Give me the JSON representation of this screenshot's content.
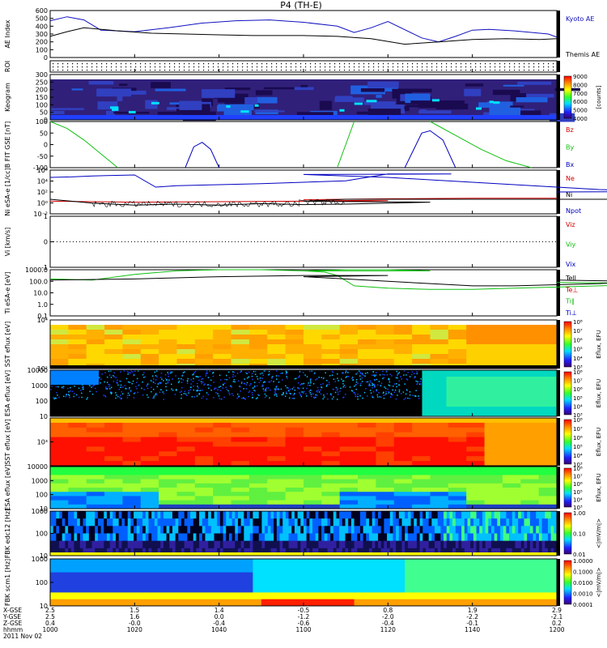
{
  "title": "P4 (TH-E)",
  "colors": {
    "kyoto": "#1010c0",
    "themis": "#000000",
    "red": "#d00000",
    "green": "#10c010",
    "blue": "#0000c0",
    "black": "#000000"
  },
  "time_axis": {
    "range": [
      1000,
      1200
    ],
    "ticks": [
      1000,
      1020,
      1040,
      1100,
      1120,
      1140,
      1200
    ]
  },
  "footer": {
    "rows": [
      {
        "label": "X-GSE",
        "values": [
          "2.5",
          "1.5",
          "1.4",
          "-0.5",
          "0.8",
          "1.9",
          "2.9"
        ]
      },
      {
        "label": "Y-GSE",
        "values": [
          "2.5",
          "1.6",
          "0.0",
          "-1.2",
          "-2.0",
          "-2.2",
          "-2.1"
        ]
      },
      {
        "label": "Z-GSE",
        "values": [
          "0.4",
          "-0.0",
          "-0.4",
          "-0.6",
          "-0.4",
          "-0.1",
          "0.2"
        ]
      },
      {
        "label": "hhmm",
        "values": [
          "1000",
          "1020",
          "1040",
          "1100",
          "1120",
          "1140",
          "1200"
        ]
      }
    ],
    "date": "2011 Nov 02"
  },
  "chart_data": [
    {
      "type": "line",
      "ylabel": "AE Index",
      "ylim": [
        0,
        600
      ],
      "yticks": [
        "0",
        "100",
        "200",
        "300",
        "400",
        "500",
        "600"
      ],
      "legend": [
        "Kyoto AE",
        "Themis AE"
      ],
      "series": [
        {
          "name": "Kyoto AE",
          "color": "#1010c0",
          "x": [
            1000,
            1004,
            1008,
            1012,
            1020,
            1028,
            1036,
            1044,
            1052,
            1100,
            1108,
            1112,
            1116,
            1120,
            1128,
            1132,
            1136,
            1140,
            1144,
            1150,
            1158,
            1200
          ],
          "y": [
            470,
            520,
            480,
            350,
            330,
            380,
            440,
            470,
            480,
            450,
            400,
            320,
            380,
            460,
            250,
            200,
            270,
            350,
            360,
            340,
            300,
            260
          ]
        },
        {
          "name": "Themis AE",
          "color": "#000000",
          "x": [
            1000,
            1004,
            1008,
            1016,
            1024,
            1032,
            1040,
            1048,
            1056,
            1100,
            1108,
            1116,
            1124,
            1132,
            1140,
            1148,
            1156,
            1200
          ],
          "y": [
            270,
            330,
            380,
            340,
            310,
            300,
            290,
            280,
            280,
            280,
            270,
            240,
            170,
            200,
            230,
            240,
            230,
            240
          ]
        }
      ]
    },
    {
      "type": "heatmap",
      "ylabel": "ROI",
      "note": "dotted flag rows"
    },
    {
      "type": "heatmap",
      "ylabel": "Keogram",
      "ylim": [
        0,
        300
      ],
      "yticks": [
        "0",
        "50",
        "100",
        "150",
        "200",
        "250",
        "300"
      ],
      "colorbar": {
        "min": 4000,
        "max": 9000,
        "ticks": [
          "4000",
          "5000",
          "6000",
          "7000",
          "8000",
          "9000"
        ],
        "label": "[counts]"
      }
    },
    {
      "type": "line",
      "ylabel": "B FIT GSE [nT]",
      "ylim": [
        -100,
        100
      ],
      "yticks": [
        "-100",
        "-50",
        "0",
        "50",
        "100"
      ],
      "legend": [
        "Bz",
        "By",
        "Bx"
      ],
      "series": [
        {
          "name": "By",
          "color": "#10c010",
          "x": [
            1000,
            1004,
            1008,
            1012,
            1016
          ],
          "y": [
            100,
            70,
            20,
            -40,
            -100
          ]
        },
        {
          "name": "By",
          "color": "#10c010",
          "x": [
            1108,
            1110,
            1112
          ],
          "y": [
            -100,
            0,
            100
          ]
        },
        {
          "name": "By",
          "color": "#10c010",
          "x": [
            1130,
            1136,
            1142,
            1148,
            1154
          ],
          "y": [
            100,
            40,
            -20,
            -70,
            -100
          ]
        },
        {
          "name": "Bx",
          "color": "#0000c0",
          "x": [
            1032,
            1034,
            1036,
            1038,
            1040
          ],
          "y": [
            -100,
            -10,
            10,
            -20,
            -100
          ]
        },
        {
          "name": "Bx",
          "color": "#0000c0",
          "x": [
            1084,
            1088,
            1090,
            1093,
            1096
          ],
          "y": [
            -100,
            50,
            60,
            20,
            -100
          ]
        }
      ]
    },
    {
      "type": "line",
      "ylabel": "Ni eSA-e [1/cc]",
      "ylim": [
        -3,
        6
      ],
      "yticks": [
        "10⁻²",
        "10⁰",
        "10²",
        "10⁴",
        "10⁶"
      ],
      "legend": [
        "Ne",
        "Ni",
        "Npot"
      ],
      "series": [
        {
          "name": "Ne",
          "color": "#d00000",
          "x": [
            1000,
            1010,
            1020,
            1040,
            1060,
            1080,
            1100,
            1120,
            1140,
            1160,
            1200
          ],
          "y": [
            -0.4,
            -0.5,
            -0.6,
            -0.5,
            -0.4,
            -0.3,
            -0.1,
            0.1,
            0.2,
            0.2,
            0.3
          ]
        },
        {
          "name": "Ni",
          "color": "#0000c0",
          "x": [
            1000,
            1005,
            1010,
            1020,
            1025,
            1030,
            1040,
            1050,
            1060,
            1070,
            1080,
            1090,
            1095,
            1100,
            1110,
            1120,
            1130,
            1140,
            1150,
            1160,
            1170,
            1180,
            1190,
            1200
          ],
          "y": [
            4.5,
            4.6,
            4.8,
            5.0,
            2.5,
            2.8,
            3.0,
            3.2,
            3.5,
            3.8,
            5.2,
            5.2,
            5.2,
            5.1,
            4.8,
            4.5,
            4.0,
            3.5,
            3.0,
            2.5,
            2.0,
            1.8,
            1.6,
            1.5
          ]
        },
        {
          "name": "Npot",
          "color": "#000000",
          "x": [
            1000,
            1010,
            1020,
            1030,
            1040,
            1050,
            1060,
            1070,
            1080,
            1090,
            1100,
            1105,
            1110,
            1120,
            1140,
            1160,
            1180,
            1200
          ],
          "y": [
            0.0,
            -0.8,
            -1.2,
            -1.0,
            -1.2,
            -0.9,
            -1.1,
            -1.0,
            -0.8,
            -0.6,
            -0.4,
            -0.2,
            0.0,
            0.0,
            0.0,
            0.0,
            0.0,
            0.0
          ]
        }
      ]
    },
    {
      "type": "line",
      "ylabel": "Vi [km/s]",
      "ylim": [
        -1,
        1
      ],
      "yticks": [
        "-1",
        "0",
        "1"
      ],
      "legend": [
        "Viz",
        "Viy",
        "Vix"
      ]
    },
    {
      "type": "line",
      "ylabel": "Ti eSA-e [eV]",
      "ylim": [
        -1,
        3
      ],
      "yticks": [
        "0.1",
        "1.0",
        "10.0",
        "100.0",
        "1000.0"
      ],
      "legend": [
        "Tell",
        "Te⊥",
        "Ti∥",
        "Ti⊥"
      ],
      "series": [
        {
          "name": "Ti∥",
          "color": "#10c010",
          "x": [
            1000,
            1010,
            1020,
            1030,
            1040,
            1050,
            1060,
            1070,
            1080,
            1090,
            1100,
            1105,
            1108,
            1112,
            1120,
            1130,
            1140,
            1150,
            1160,
            1170,
            1180,
            1190,
            1200
          ],
          "y": [
            2.2,
            2.1,
            2.6,
            2.9,
            3.0,
            3.0,
            2.9,
            3.0,
            3.0,
            2.9,
            2.9,
            2.8,
            2.5,
            1.6,
            1.4,
            1.3,
            1.3,
            1.4,
            1.5,
            1.6,
            1.7,
            1.8,
            1.9
          ]
        },
        {
          "name": "Tell",
          "color": "#000000",
          "x": [
            1000,
            1020,
            1040,
            1060,
            1080,
            1100,
            1110,
            1120,
            1130,
            1140,
            1150,
            1160,
            1170,
            1180,
            1200
          ],
          "y": [
            2.1,
            2.2,
            2.4,
            2.5,
            2.5,
            2.4,
            2.2,
            2.0,
            1.8,
            1.6,
            1.6,
            1.7,
            1.8,
            2.0,
            2.1
          ]
        }
      ]
    },
    {
      "type": "heatmap",
      "ylabel": "SST eflux [eV]",
      "ylim": [
        1,
        4.5
      ],
      "yticks": [
        "10²",
        "10⁴"
      ],
      "colorbar": {
        "min": 3,
        "max": 8,
        "ticks": [
          "10³",
          "10⁴",
          "10⁵",
          "10⁶",
          "10⁷",
          "10⁸"
        ],
        "label": "Eflux, EFU"
      }
    },
    {
      "type": "heatmap",
      "ylabel": "ESA eflux [eV]",
      "ylim": [
        1,
        4
      ],
      "yticks": [
        "10",
        "100",
        "1000",
        "10000"
      ],
      "colorbar": {
        "min": 3,
        "max": 8,
        "ticks": [
          "10³",
          "10⁴",
          "10⁵",
          "10⁶",
          "10⁷",
          "10⁸"
        ],
        "label": "Eflux, EFU"
      }
    },
    {
      "type": "heatmap",
      "ylabel": "SST eflux [eV]",
      "ylim": [
        1,
        4.5
      ],
      "yticks": [
        "10³"
      ],
      "colorbar": {
        "min": 3,
        "max": 8,
        "ticks": [
          "10³",
          "10⁴",
          "10⁵",
          "10⁶",
          "10⁷",
          "10⁸"
        ],
        "label": "Eflux, EFU"
      }
    },
    {
      "type": "heatmap",
      "ylabel": "ESA eflux [eV]",
      "ylim": [
        1,
        4
      ],
      "yticks": [
        "10",
        "100",
        "1000",
        "10000"
      ],
      "colorbar": {
        "min": 3,
        "max": 8,
        "ticks": [
          "10³",
          "10⁴",
          "10⁵",
          "10⁶",
          "10⁷",
          "10⁸"
        ],
        "label": "Eflux, EFU"
      }
    },
    {
      "type": "heatmap",
      "ylabel": "FBK edc12 [Hz]",
      "ylim": [
        1,
        3
      ],
      "yticks": [
        "10",
        "100",
        "1000"
      ],
      "colorbar": {
        "min": 0.01,
        "max": 1,
        "ticks": [
          "0.01",
          "0.10",
          "1.00"
        ],
        "label": "<|mV/m|>"
      }
    },
    {
      "type": "heatmap",
      "ylabel": "FBK scm1 [Hz]",
      "ylim": [
        0.7,
        3
      ],
      "yticks": [
        "10",
        "100",
        "1000"
      ],
      "colorbar": {
        "min": 0.0001,
        "max": 1,
        "ticks": [
          "0.0001",
          "0.0010",
          "0.0100",
          "0.1000",
          "1.0000"
        ],
        "label": "<|mV/m|>"
      }
    }
  ]
}
